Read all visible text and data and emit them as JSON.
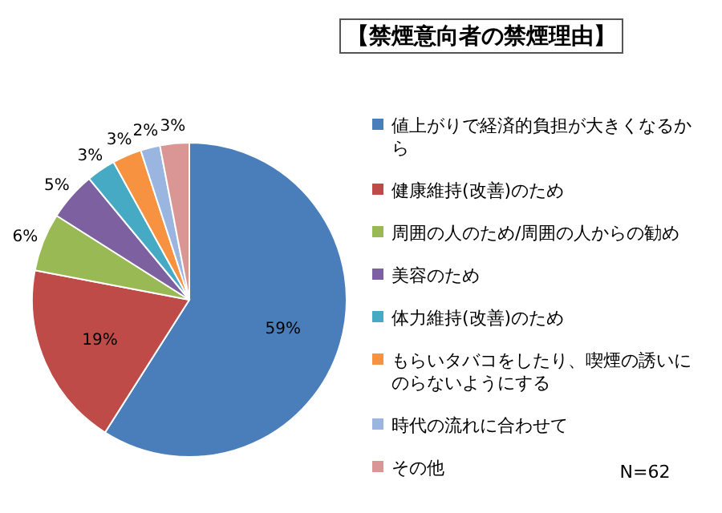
{
  "chart_data": {
    "type": "pie",
    "title": "【禁煙意向者の禁煙理由】",
    "categories": [
      "値上がりで経済的負担が大きくなるから",
      "健康維持(改善)のため",
      "周囲の人のため/周囲の人からの勧め",
      "美容のため",
      "体力維持(改善)のため",
      "もらいタバコをしたり、喫煙の誘いにのらないようにする",
      "時代の流れに合わせて",
      "その他"
    ],
    "values": [
      59,
      19,
      6,
      5,
      3,
      3,
      2,
      3
    ],
    "colors": [
      "#4a7ebb",
      "#be4b48",
      "#98b954",
      "#7d60a0",
      "#46aac5",
      "#f69240",
      "#9ab6e0",
      "#d99694"
    ],
    "value_labels": [
      "59%",
      "19%",
      "6%",
      "5%",
      "3%",
      "3%",
      "2%",
      "3%"
    ],
    "legend": "right",
    "annotations": [
      "N=62"
    ]
  }
}
